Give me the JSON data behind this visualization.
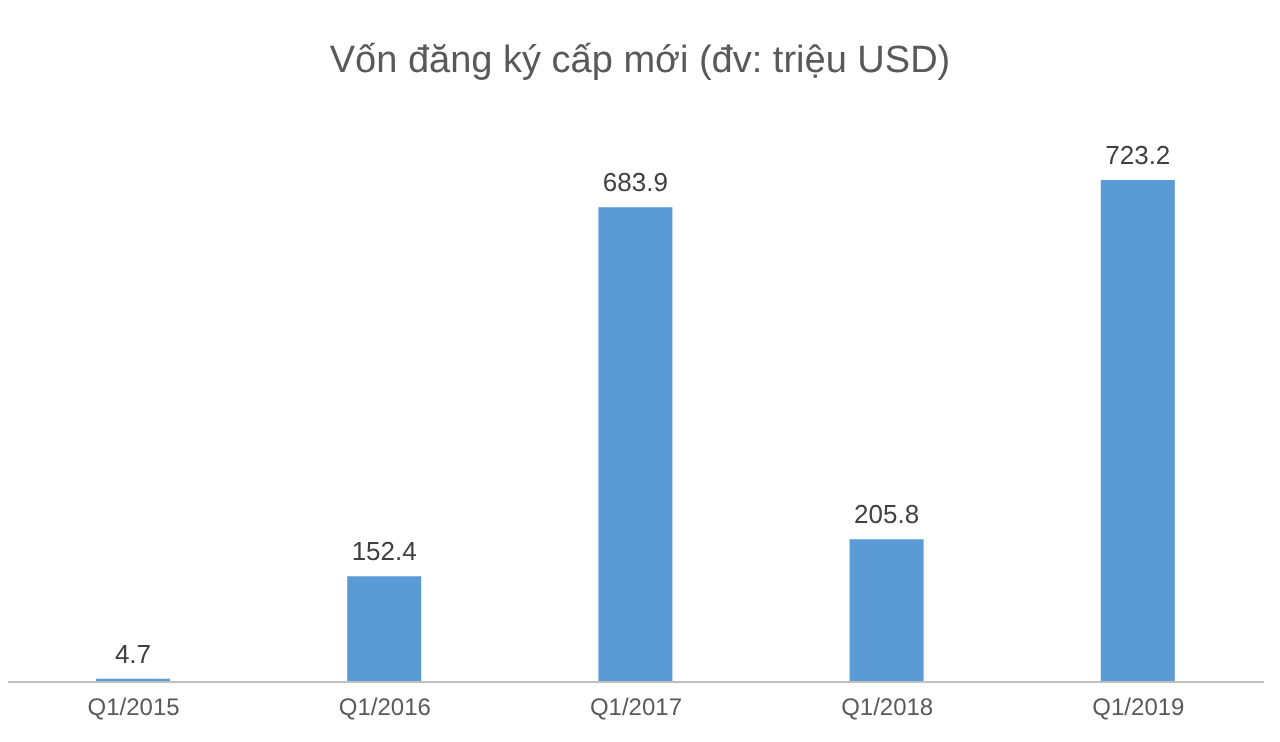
{
  "chart_data": {
    "type": "bar",
    "title": "Vốn đăng ký cấp mới (đv: triệu USD)",
    "categories": [
      "Q1/2015",
      "Q1/2016",
      "Q1/2017",
      "Q1/2018",
      "Q1/2019"
    ],
    "values": [
      4.7,
      152.4,
      683.9,
      205.8,
      723.2
    ],
    "color": "#5b9bd5",
    "data_labels": true
  }
}
